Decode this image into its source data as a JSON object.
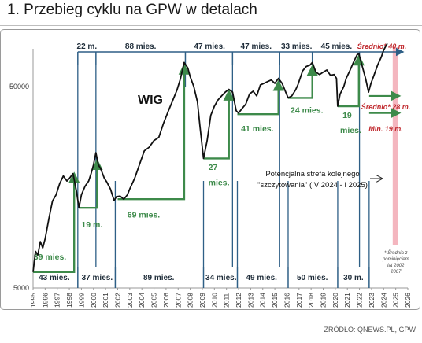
{
  "title": "1. Przebieg cyklu na GPW w detalach",
  "source": "ŹRÓDŁO: QNEWS.PL, GPW",
  "chart_data": {
    "type": "line",
    "series_label": "WIG",
    "yscale": "log",
    "ylim": [
      5000,
      80000
    ],
    "xlim": [
      1995,
      2026
    ],
    "y_ticks": [
      {
        "value": 5000,
        "label": "5000"
      },
      {
        "value": 50000,
        "label": "50000"
      }
    ],
    "x_ticks": [
      1995,
      1996,
      1997,
      1998,
      1999,
      2000,
      2001,
      2002,
      2003,
      2004,
      2005,
      2006,
      2007,
      2008,
      2009,
      2010,
      2011,
      2012,
      2013,
      2014,
      2015,
      2016,
      2017,
      2018,
      2019,
      2020,
      2021,
      2022,
      2023,
      2024,
      2025,
      2026
    ],
    "wig": [
      [
        1995.0,
        6000
      ],
      [
        1995.2,
        7600
      ],
      [
        1995.4,
        7300
      ],
      [
        1995.6,
        8500
      ],
      [
        1995.8,
        7900
      ],
      [
        1996.0,
        8800
      ],
      [
        1996.3,
        11000
      ],
      [
        1996.6,
        13500
      ],
      [
        1996.9,
        14500
      ],
      [
        1997.2,
        16500
      ],
      [
        1997.5,
        18000
      ],
      [
        1997.8,
        17000
      ],
      [
        1998.0,
        17500
      ],
      [
        1998.3,
        18500
      ],
      [
        1998.6,
        15000
      ],
      [
        1998.8,
        12500
      ],
      [
        1999.0,
        14500
      ],
      [
        1999.3,
        16000
      ],
      [
        1999.6,
        17000
      ],
      [
        1999.8,
        18500
      ],
      [
        2000.0,
        20500
      ],
      [
        2000.2,
        23500
      ],
      [
        2000.4,
        20500
      ],
      [
        2000.6,
        19500
      ],
      [
        2000.9,
        17500
      ],
      [
        2001.1,
        16800
      ],
      [
        2001.4,
        15500
      ],
      [
        2001.7,
        13600
      ],
      [
        2001.9,
        14200
      ],
      [
        2002.2,
        14300
      ],
      [
        2002.5,
        13800
      ],
      [
        2002.8,
        14500
      ],
      [
        2003.0,
        15500
      ],
      [
        2003.4,
        17500
      ],
      [
        2003.8,
        20500
      ],
      [
        2004.2,
        24000
      ],
      [
        2004.6,
        25000
      ],
      [
        2005.0,
        27000
      ],
      [
        2005.4,
        28000
      ],
      [
        2005.8,
        33000
      ],
      [
        2006.2,
        38000
      ],
      [
        2006.5,
        42000
      ],
      [
        2006.9,
        48000
      ],
      [
        2007.2,
        55000
      ],
      [
        2007.5,
        66000
      ],
      [
        2007.8,
        62000
      ],
      [
        2008.0,
        56000
      ],
      [
        2008.3,
        50000
      ],
      [
        2008.6,
        42000
      ],
      [
        2008.8,
        32000
      ],
      [
        2009.1,
        22000
      ],
      [
        2009.4,
        27000
      ],
      [
        2009.7,
        36000
      ],
      [
        2010.0,
        40000
      ],
      [
        2010.3,
        43000
      ],
      [
        2010.6,
        45000
      ],
      [
        2010.9,
        47000
      ],
      [
        2011.2,
        48500
      ],
      [
        2011.5,
        47000
      ],
      [
        2011.8,
        38000
      ],
      [
        2012.0,
        37000
      ],
      [
        2012.3,
        39000
      ],
      [
        2012.6,
        41000
      ],
      [
        2012.9,
        46000
      ],
      [
        2013.2,
        47500
      ],
      [
        2013.5,
        45000
      ],
      [
        2013.8,
        51000
      ],
      [
        2014.1,
        52000
      ],
      [
        2014.4,
        53000
      ],
      [
        2014.7,
        54000
      ],
      [
        2015.0,
        52000
      ],
      [
        2015.3,
        55000
      ],
      [
        2015.6,
        52000
      ],
      [
        2015.9,
        47000
      ],
      [
        2016.1,
        44000
      ],
      [
        2016.4,
        45000
      ],
      [
        2016.7,
        48000
      ],
      [
        2016.9,
        51000
      ],
      [
        2017.3,
        60000
      ],
      [
        2017.6,
        63000
      ],
      [
        2017.9,
        64000
      ],
      [
        2018.1,
        66000
      ],
      [
        2018.4,
        59000
      ],
      [
        2018.7,
        57500
      ],
      [
        2019.0,
        59000
      ],
      [
        2019.3,
        60500
      ],
      [
        2019.6,
        57000
      ],
      [
        2019.9,
        57500
      ],
      [
        2020.1,
        55000
      ],
      [
        2020.2,
        40000
      ],
      [
        2020.4,
        46000
      ],
      [
        2020.7,
        50000
      ],
      [
        2020.9,
        55000
      ],
      [
        2021.2,
        60000
      ],
      [
        2021.5,
        66000
      ],
      [
        2021.8,
        72000
      ],
      [
        2021.95,
        73000
      ],
      [
        2022.2,
        64000
      ],
      [
        2022.5,
        55000
      ],
      [
        2022.75,
        47000
      ],
      [
        2022.95,
        52000
      ],
      [
        2023.2,
        57000
      ],
      [
        2023.5,
        64000
      ],
      [
        2023.8,
        70000
      ],
      [
        2024.0,
        76000
      ],
      [
        2024.3,
        82000
      ]
    ],
    "cycle_starts": [
      1998.7,
      2001.8,
      2009.1,
      2011.9,
      2016.1,
      2020.2,
      2022.8
    ],
    "bottom_labels": [
      {
        "x": 1996.75,
        "text": "43 mies."
      },
      {
        "x": 2000.3,
        "text": "37 mies."
      },
      {
        "x": 2005.4,
        "text": "89 mies."
      },
      {
        "x": 2010.55,
        "text": "34 mies."
      },
      {
        "x": 2013.9,
        "text": "49 mies."
      },
      {
        "x": 2018.1,
        "text": "50 mies."
      },
      {
        "x": 2021.5,
        "text": "30 m."
      }
    ],
    "top_lines": [
      1998.7,
      2000.2,
      2007.6,
      2011.5,
      2015.4,
      2018.1,
      2022.0
    ],
    "top_labels": [
      {
        "x": 1999.45,
        "text": "22 m."
      },
      {
        "x": 2003.9,
        "text": "88 mies."
      },
      {
        "x": 2009.6,
        "text": "47 mies."
      },
      {
        "x": 2013.45,
        "text": "47 mies."
      },
      {
        "x": 2016.8,
        "text": "33 mies."
      },
      {
        "x": 2020.1,
        "text": "45 mies."
      }
    ],
    "top_forecast_label": "Średnio* 40 m.",
    "bull_steps": [
      {
        "x0": 1995.0,
        "x1": 1998.4,
        "y0": 6000,
        "y1": 18500,
        "label": "39 mies.",
        "lx": 1995.05,
        "ly": 6900
      },
      {
        "x0": 1998.8,
        "x1": 2000.3,
        "y0": 12500,
        "y1": 21500,
        "label": "19 m.",
        "lx": 1999.0,
        "ly": 10000
      },
      {
        "x0": 2002.0,
        "x1": 2007.5,
        "y0": 13800,
        "y1": 64000,
        "label": "69 mies.",
        "lx": 2002.8,
        "ly": 11200
      },
      {
        "x0": 2009.1,
        "x1": 2011.2,
        "y0": 22000,
        "y1": 47500,
        "label": "27",
        "lx": 2009.5,
        "ly": 19300
      },
      {
        "x0": 2011.9,
        "x1": 2015.3,
        "y0": 36500,
        "y1": 53000,
        "label": "41 mies.",
        "lx": 2012.2,
        "ly": 30000
      },
      {
        "x0": 2016.1,
        "x1": 2018.1,
        "y0": 44000,
        "y1": 63000,
        "label": "24 mies.",
        "lx": 2016.3,
        "ly": 37000
      },
      {
        "x0": 2020.2,
        "x1": 2021.95,
        "y0": 40000,
        "y1": 71000,
        "label": "19",
        "lx": 2020.6,
        "ly": 35000
      }
    ],
    "bull_labels_extra": [
      {
        "text": "mies.",
        "lx": 2009.5,
        "ly": 16200
      },
      {
        "text": "mies.",
        "lx": 2020.4,
        "ly": 29500
      }
    ],
    "green_arrows": [
      {
        "x0": 2022.8,
        "x1": 2025.3,
        "y": 45000,
        "label": "Średnio* 28 m.",
        "ly": 38500
      },
      {
        "x0": 2022.8,
        "x1": 2025.3,
        "y": 37000,
        "label": "Min. 19 m.",
        "ly": 30000
      }
    ],
    "forecast_zone": {
      "x0": 2024.75,
      "x1": 2025.2,
      "label_lines": [
        "* Średnia z",
        "pominięciem",
        "lat 2002",
        "2007"
      ]
    },
    "annotation_lines": [
      "Potencjalna strefa kolejnego",
      "\"szczytowania\" (IV 2024 - I 2025)"
    ]
  }
}
